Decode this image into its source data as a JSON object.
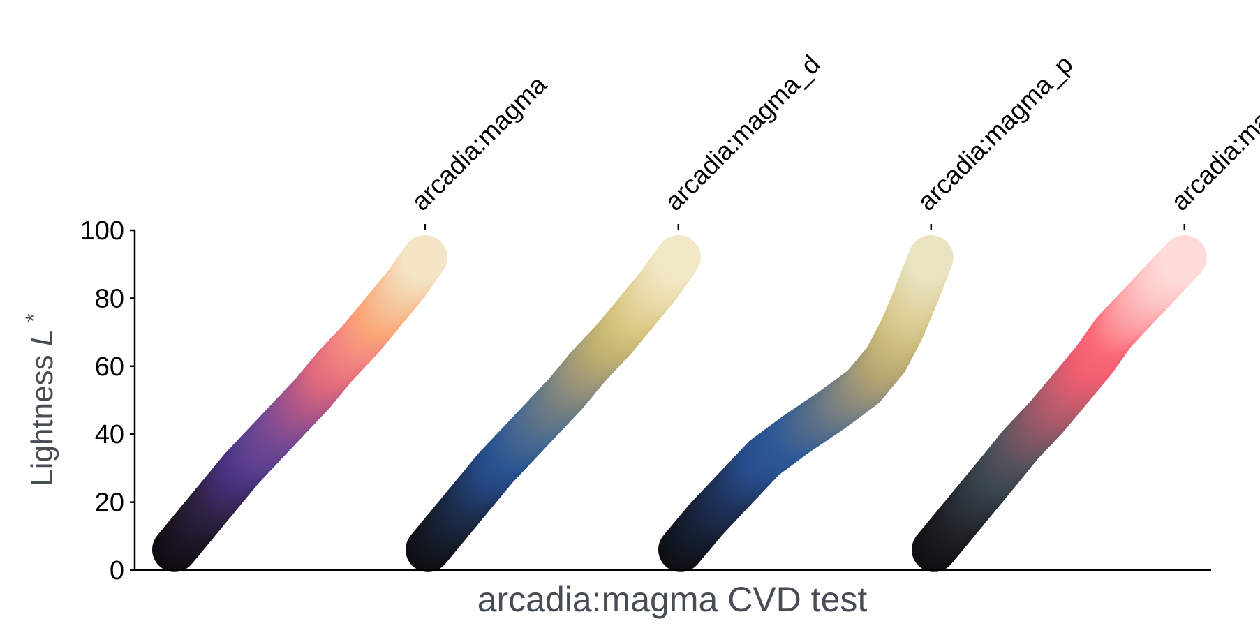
{
  "chart_data": {
    "type": "scatter",
    "xlabel": "arcadia:magma CVD test",
    "ylabel_main": "Lightness ",
    "ylabel_var": "L",
    "ylabel_sup": "*",
    "ylim": [
      0,
      100
    ],
    "yticks": [
      0,
      20,
      40,
      60,
      80,
      100
    ],
    "grid": false,
    "legend": "none",
    "x_tick_position": "top",
    "series": [
      {
        "name": "arcadia:magma",
        "points": [
          {
            "x": 0.0,
            "y": 6,
            "color": "#0e0b10"
          },
          {
            "x": 0.07,
            "y": 14,
            "color": "#1e1626"
          },
          {
            "x": 0.14,
            "y": 22,
            "color": "#2f2245"
          },
          {
            "x": 0.21,
            "y": 30,
            "color": "#45307a"
          },
          {
            "x": 0.27,
            "y": 36,
            "color": "#5a3f8f"
          },
          {
            "x": 0.35,
            "y": 44,
            "color": "#7a4a92"
          },
          {
            "x": 0.43,
            "y": 52,
            "color": "#ae5688"
          },
          {
            "x": 0.5,
            "y": 60,
            "color": "#e26a7d"
          },
          {
            "x": 0.58,
            "y": 68,
            "color": "#f38880"
          },
          {
            "x": 0.65,
            "y": 76,
            "color": "#fba878"
          },
          {
            "x": 0.72,
            "y": 84,
            "color": "#f6c8a0"
          },
          {
            "x": 0.78,
            "y": 92,
            "color": "#f3e5c5"
          }
        ]
      },
      {
        "name": "arcadia:magma_d",
        "points": [
          {
            "x": 0.0,
            "y": 6,
            "color": "#0d0e11"
          },
          {
            "x": 0.07,
            "y": 14,
            "color": "#151d2c"
          },
          {
            "x": 0.14,
            "y": 22,
            "color": "#1c2d4e"
          },
          {
            "x": 0.21,
            "y": 30,
            "color": "#24457d"
          },
          {
            "x": 0.27,
            "y": 36,
            "color": "#2b5592"
          },
          {
            "x": 0.35,
            "y": 44,
            "color": "#4a6a8f"
          },
          {
            "x": 0.43,
            "y": 52,
            "color": "#6f7d83"
          },
          {
            "x": 0.5,
            "y": 60,
            "color": "#9a9478"
          },
          {
            "x": 0.58,
            "y": 68,
            "color": "#bfb070"
          },
          {
            "x": 0.65,
            "y": 76,
            "color": "#d8c680"
          },
          {
            "x": 0.72,
            "y": 84,
            "color": "#e8d9a6"
          },
          {
            "x": 0.78,
            "y": 92,
            "color": "#f2e8c6"
          }
        ]
      },
      {
        "name": "arcadia:magma_p",
        "points": [
          {
            "x": 0.0,
            "y": 6,
            "color": "#0d0e11"
          },
          {
            "x": 0.08,
            "y": 15,
            "color": "#151e30"
          },
          {
            "x": 0.17,
            "y": 24,
            "color": "#1e3158"
          },
          {
            "x": 0.26,
            "y": 33,
            "color": "#274d8a"
          },
          {
            "x": 0.36,
            "y": 40,
            "color": "#2f5a96"
          },
          {
            "x": 0.47,
            "y": 47,
            "color": "#5a6f88"
          },
          {
            "x": 0.57,
            "y": 54,
            "color": "#8a8a7c"
          },
          {
            "x": 0.64,
            "y": 62,
            "color": "#b3a472"
          },
          {
            "x": 0.69,
            "y": 71,
            "color": "#ccbc7c"
          },
          {
            "x": 0.73,
            "y": 80,
            "color": "#dccf98"
          },
          {
            "x": 0.78,
            "y": 92,
            "color": "#eae3c2"
          }
        ]
      },
      {
        "name": "arcadia:magma_t",
        "points": [
          {
            "x": 0.0,
            "y": 6,
            "color": "#0f0f11"
          },
          {
            "x": 0.07,
            "y": 14,
            "color": "#1a1c20"
          },
          {
            "x": 0.14,
            "y": 22,
            "color": "#2a3038"
          },
          {
            "x": 0.21,
            "y": 30,
            "color": "#3c4650"
          },
          {
            "x": 0.27,
            "y": 37,
            "color": "#55525c"
          },
          {
            "x": 0.35,
            "y": 45,
            "color": "#8a5866"
          },
          {
            "x": 0.43,
            "y": 54,
            "color": "#c25c6c"
          },
          {
            "x": 0.5,
            "y": 62,
            "color": "#f05d70"
          },
          {
            "x": 0.56,
            "y": 70,
            "color": "#fb6a78"
          },
          {
            "x": 0.63,
            "y": 77,
            "color": "#fd9ca0"
          },
          {
            "x": 0.71,
            "y": 85,
            "color": "#ffc6c6"
          },
          {
            "x": 0.78,
            "y": 92,
            "color": "#ffdcd8"
          }
        ]
      }
    ]
  }
}
